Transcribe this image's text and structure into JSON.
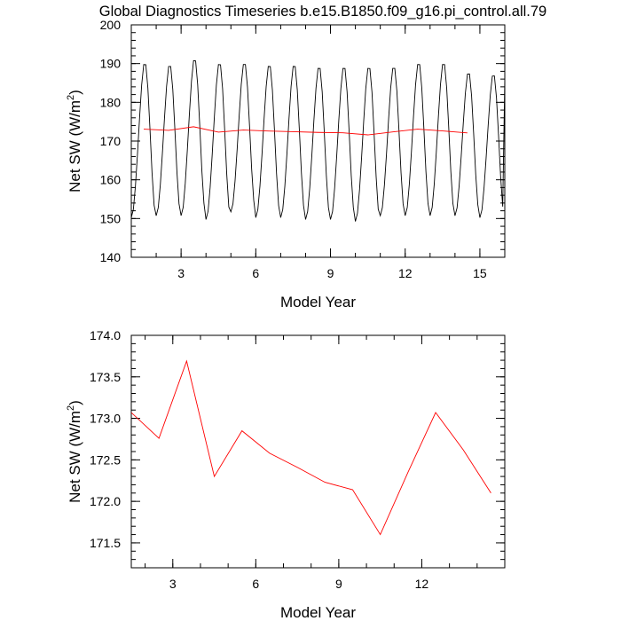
{
  "title": "Global Diagnostics Timeseries b.e15.B1850.f09_g16.pi_control.all.79",
  "chart_data": [
    {
      "type": "line",
      "title": "Global Diagnostics Timeseries b.e15.B1850.f09_g16.pi_control.all.79",
      "xlabel": "Model Year",
      "ylabel": "Net SW (W/m",
      "ylabel_sup": "2",
      "ylabel_close": ")",
      "xlim": [
        1.0,
        16.0
      ],
      "ylim": [
        140,
        200
      ],
      "xticks": [
        3,
        6,
        9,
        12,
        15
      ],
      "yticks": [
        140,
        150,
        160,
        170,
        180,
        190,
        200
      ],
      "xtick_labels": [
        "3",
        "6",
        "9",
        "12",
        "15"
      ],
      "ytick_labels": [
        "140",
        "150",
        "160",
        "170",
        "180",
        "190",
        "200"
      ],
      "series": [
        {
          "color": "#000000",
          "seasonal_peaks": [
            190,
            189.5,
            191,
            190,
            190,
            189.5,
            189.5,
            189,
            189,
            189,
            189,
            190,
            190,
            187.5,
            187
          ],
          "seasonal_troughs": [
            150,
            150.5,
            150.5,
            149.5,
            151.5,
            150,
            150,
            149.5,
            149.5,
            149,
            150.5,
            150.5,
            150.5,
            150.5,
            150
          ]
        },
        {
          "color": "#ff0000",
          "x": [
            1.5,
            2.5,
            3.5,
            4.5,
            5.5,
            6.5,
            7.5,
            8.5,
            9.5,
            10.5,
            11.5,
            12.5,
            13.5,
            14.5
          ],
          "values": [
            173.07,
            172.76,
            173.69,
            172.3,
            172.85,
            172.58,
            172.41,
            172.23,
            172.14,
            171.6,
            172.35,
            173.07,
            172.62,
            172.1
          ]
        }
      ]
    },
    {
      "type": "line",
      "title": "",
      "xlabel": "Model Year",
      "ylabel": "Net SW (W/m",
      "ylabel_sup": "2",
      "ylabel_close": ")",
      "xlim": [
        1.5,
        15.0
      ],
      "ylim": [
        171.2,
        174.0
      ],
      "xticks": [
        3,
        6,
        9,
        12
      ],
      "yticks": [
        171.5,
        172.0,
        172.5,
        173.0,
        173.5,
        174.0
      ],
      "xtick_labels": [
        "3",
        "6",
        "9",
        "12"
      ],
      "ytick_labels": [
        "171.5",
        "172.0",
        "172.5",
        "173.0",
        "173.5",
        "174.0"
      ],
      "series": [
        {
          "color": "#ff0000",
          "x": [
            1.5,
            2.5,
            3.5,
            4.5,
            5.5,
            6.5,
            7.5,
            8.5,
            9.5,
            10.5,
            11.5,
            12.5,
            13.5,
            14.5
          ],
          "values": [
            173.07,
            172.76,
            173.69,
            172.3,
            172.85,
            172.58,
            172.41,
            172.23,
            172.14,
            171.6,
            172.35,
            173.07,
            172.62,
            172.1
          ]
        }
      ]
    }
  ]
}
